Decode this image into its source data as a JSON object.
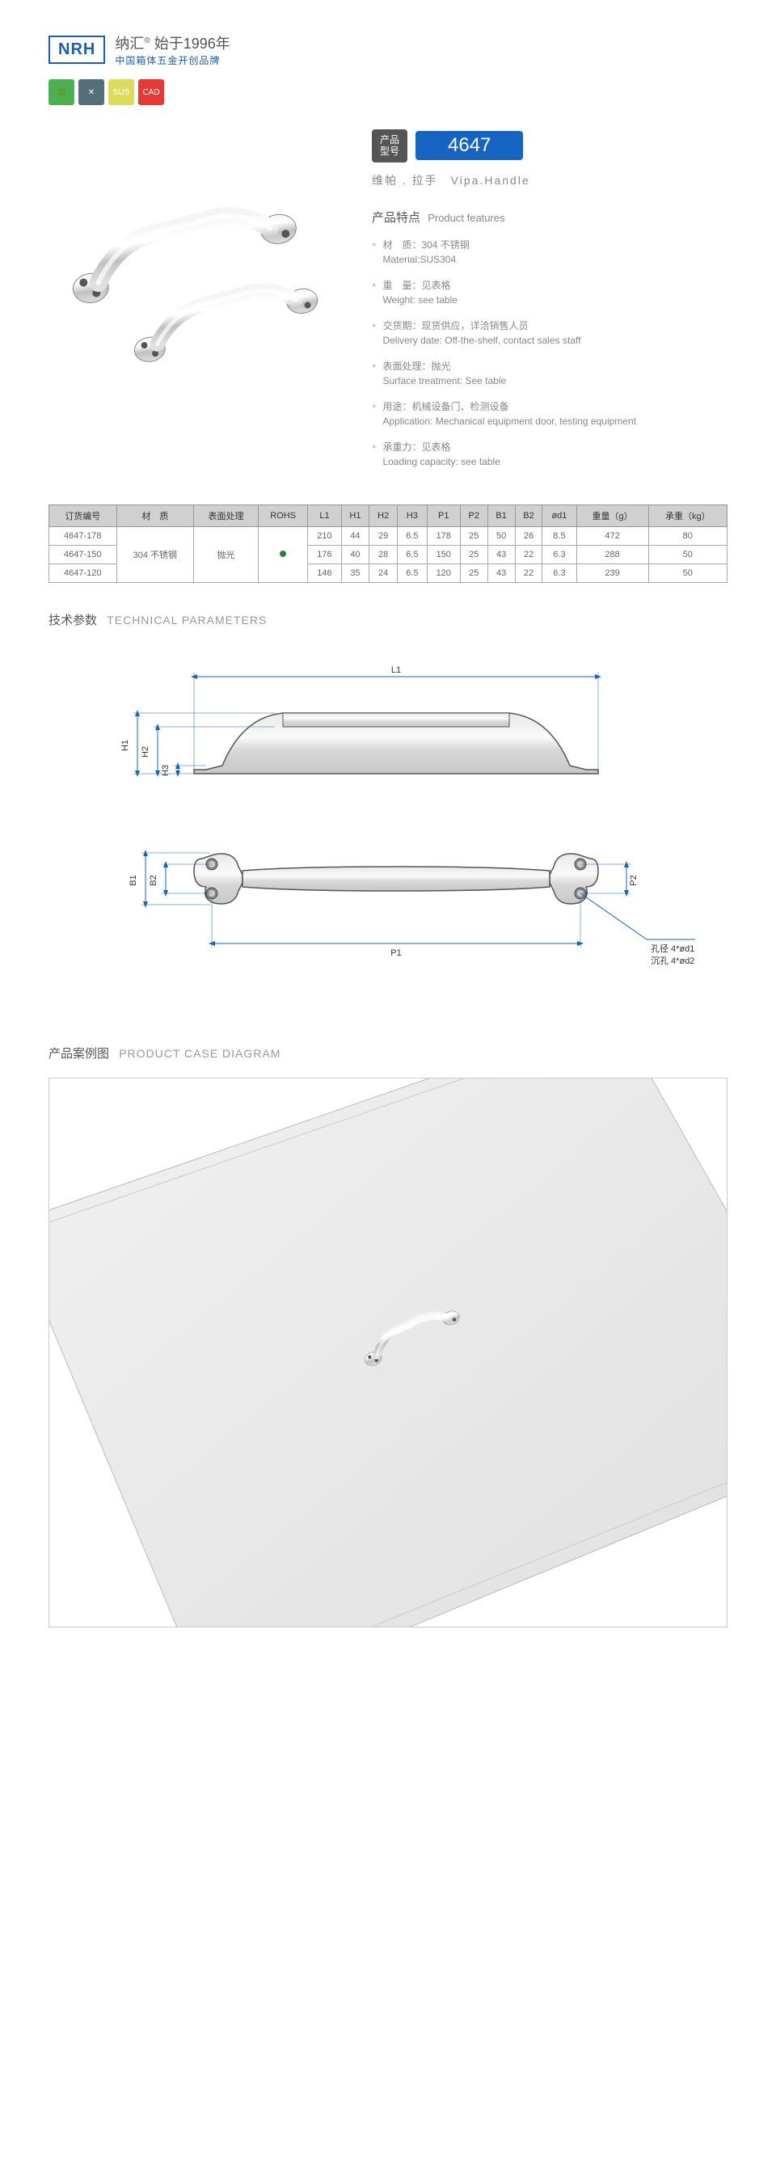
{
  "brand": {
    "logo": "NRH",
    "name_cn": "纳汇",
    "tagline_cn": "始于1996年",
    "slogan_cn": "中国箱体五金开创品牌"
  },
  "icons": [
    "🌱",
    "✕",
    "SUS",
    "CAD"
  ],
  "model": {
    "label_cn": "产品\n型号",
    "number": "4647",
    "name_cn": "维帕 . 拉手",
    "name_en": "Vipa.Handle"
  },
  "features": {
    "title_cn": "产品特点",
    "title_en": "Product features",
    "items": [
      {
        "cn": "材　质：304 不锈钢",
        "en": "Material:SUS304"
      },
      {
        "cn": "重　量：见表格",
        "en": "Weight: see table"
      },
      {
        "cn": "交货期：现货供应，详洽销售人员",
        "en": "Delivery date: Off-the-shelf, contact sales staff"
      },
      {
        "cn": "表面处理：抛光",
        "en": "Surface treatment: See table"
      },
      {
        "cn": "用途：机械设备门、检测设备",
        "en": "Application: Mechanical equipment door, testing equipment"
      },
      {
        "cn": "承重力：见表格",
        "en": "Loading capacity: see table"
      }
    ]
  },
  "table": {
    "headers": [
      "订货编号",
      "材　质",
      "表面处理",
      "ROHS",
      "L1",
      "H1",
      "H2",
      "H3",
      "P1",
      "P2",
      "B1",
      "B2",
      "ød1",
      "重量（g）",
      "承重（kg）"
    ],
    "rows": [
      [
        "4647-178",
        "304 不锈钢",
        "抛光",
        "●",
        "210",
        "44",
        "29",
        "6.5",
        "178",
        "25",
        "50",
        "26",
        "8.5",
        "472",
        "80"
      ],
      [
        "4647-150",
        "",
        "",
        "",
        "176",
        "40",
        "28",
        "6.5",
        "150",
        "25",
        "43",
        "22",
        "6.3",
        "288",
        "50"
      ],
      [
        "4647-120",
        "",
        "",
        "",
        "146",
        "35",
        "24",
        "6.5",
        "120",
        "25",
        "43",
        "22",
        "6.3",
        "239",
        "50"
      ]
    ],
    "merged_material": "304 不锈钢",
    "merged_surface": "抛光"
  },
  "tech_params": {
    "title_cn": "技术参数",
    "title_en": "TECHNICAL PARAMETERS",
    "labels": {
      "L1": "L1",
      "H1": "H1",
      "H2": "H2",
      "H3": "H3",
      "B1": "B1",
      "B2": "B2",
      "P1": "P1",
      "P2": "P2"
    },
    "hole_note_1": "孔径 4*ød1",
    "hole_note_2": "沉孔 4*ød2"
  },
  "case_diagram": {
    "title_cn": "产品案例图",
    "title_en": "PRODUCT CASE DIAGRAM"
  },
  "colors": {
    "primary_blue": "#1565c0",
    "logo_blue": "#1a5fb4",
    "table_header": "#d0d0d0",
    "text_gray": "#888",
    "metal_light": "#e8e8e8",
    "metal_dark": "#999"
  }
}
